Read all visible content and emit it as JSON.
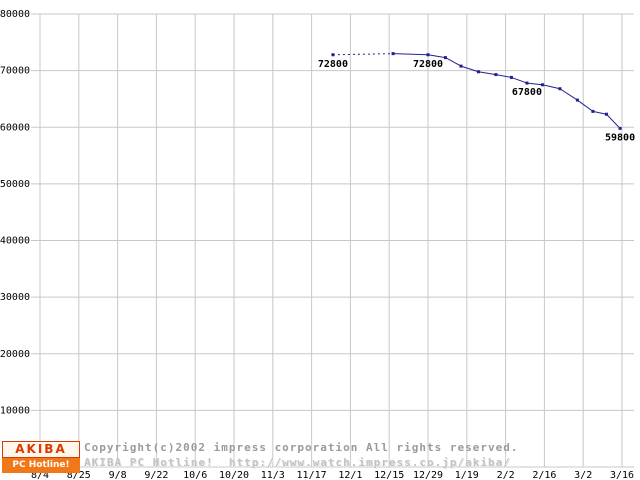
{
  "chart_data": {
    "type": "line",
    "title": "",
    "xlabel": "",
    "ylabel": "",
    "ylim": [
      0,
      80000
    ],
    "ytick_step": 10000,
    "grid": true,
    "grid_color": "#c8c8c8",
    "x_tick_labels": [
      "8/4",
      "8/25",
      "9/8",
      "9/22",
      "10/6",
      "10/20",
      "11/3",
      "11/17",
      "12/1",
      "12/15",
      "12/29",
      "1/19",
      "2/2",
      "2/16",
      "3/2",
      "3/16"
    ],
    "y_tick_labels": [
      "10000",
      "20000",
      "30000",
      "40000",
      "50000",
      "60000",
      "70000",
      "80000"
    ],
    "series": [
      {
        "name": "price",
        "color": "#202090",
        "points": [
          {
            "x": 7.55,
            "y": 72800,
            "label": "72800",
            "dotted_to_next": true
          },
          {
            "x": 9.1,
            "y": 73000
          },
          {
            "x": 10.0,
            "y": 72800,
            "label": "72800"
          },
          {
            "x": 10.45,
            "y": 72300
          },
          {
            "x": 10.85,
            "y": 70800
          },
          {
            "x": 11.3,
            "y": 69800
          },
          {
            "x": 11.75,
            "y": 69300
          },
          {
            "x": 12.15,
            "y": 68800
          },
          {
            "x": 12.55,
            "y": 67800,
            "label": "67800"
          },
          {
            "x": 12.95,
            "y": 67500
          },
          {
            "x": 13.4,
            "y": 66800
          },
          {
            "x": 13.85,
            "y": 64800
          },
          {
            "x": 14.25,
            "y": 62800
          },
          {
            "x": 14.6,
            "y": 62300
          },
          {
            "x": 14.95,
            "y": 59800,
            "label": "59800"
          }
        ]
      }
    ]
  },
  "footer": {
    "copyright": "Copyright(c)2002 impress corporation All rights reserved.",
    "site": "AKIBA PC Hotline!  http://www.watch.impress.co.jp/akiba/"
  },
  "logo": {
    "top": "AKIBA",
    "bottom": "PC Hotline!"
  }
}
